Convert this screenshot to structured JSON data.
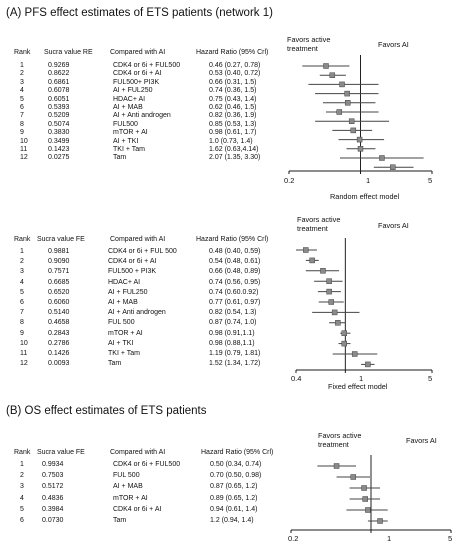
{
  "panels": [
    {
      "id": "A1",
      "title": "(A) PFS effect estimates of ETS patients (network 1)",
      "headers": [
        "Rank",
        "Sucra value RE",
        "Compared with AI",
        "Hazard Ratio (95% Crl)"
      ],
      "favors_left": [
        "Favors active",
        "treatment"
      ],
      "favors_right": "Favors AI",
      "axis_ticks": [
        "0.2",
        "1",
        "5"
      ],
      "model_label": "Random effect model",
      "rows": [
        {
          "rank": "1",
          "sucra": "0.9269",
          "comp": "CDK4 or 6i + FUL500",
          "hr": "0.46 (0.27, 0.78)"
        },
        {
          "rank": "2",
          "sucra": "0.8622",
          "comp": "CDK4 or 6i + AI",
          "hr": "0.53 (0.40, 0.72)"
        },
        {
          "rank": "3",
          "sucra": "0.6861",
          "comp": "FUL500+ PI3K",
          "hr": "0.66 (0.31, 1.5)"
        },
        {
          "rank": "4",
          "sucra": "0.6078",
          "comp": "AI + FUL250",
          "hr": "0.74 (0.36, 1.5)"
        },
        {
          "rank": "5",
          "sucra": "0.6051",
          "comp": "HDAC+ AI",
          "hr": "0.75 (0.43, 1.4)"
        },
        {
          "rank": "6",
          "sucra": "0.5393",
          "comp": "AI + MAB",
          "hr": "0.62 (0.46, 1.5)"
        },
        {
          "rank": "7",
          "sucra": "0.5209",
          "comp": "AI + Anti androgen",
          "hr": "0.82 (0.36, 1.9)"
        },
        {
          "rank": "8",
          "sucra": "0.5074",
          "comp": "FUL500",
          "hr": "0.85 (0.53, 1.3)"
        },
        {
          "rank": "9",
          "sucra": "0.3830",
          "comp": "mTOR + AI",
          "hr": "0.98 (0.61, 1.7)"
        },
        {
          "rank": "10",
          "sucra": "0.3499",
          "comp": "AI + TKI",
          "hr": "1.0 (0.73, 1.4)"
        },
        {
          "rank": "11",
          "sucra": "0.1423",
          "comp": "TKI + Tam",
          "hr": "1.62 (0.63,4.14)"
        },
        {
          "rank": "12",
          "sucra": "0.0275",
          "comp": "Tam",
          "hr": "2.07 (1.35, 3.30)"
        }
      ],
      "forest": [
        {
          "est": 0.46,
          "lo": 0.27,
          "hi": 0.78
        },
        {
          "est": 0.53,
          "lo": 0.4,
          "hi": 0.72
        },
        {
          "est": 0.66,
          "lo": 0.31,
          "hi": 1.5
        },
        {
          "est": 0.74,
          "lo": 0.36,
          "hi": 1.5
        },
        {
          "est": 0.75,
          "lo": 0.43,
          "hi": 1.4
        },
        {
          "est": 0.62,
          "lo": 0.46,
          "hi": 1.5
        },
        {
          "est": 0.82,
          "lo": 0.36,
          "hi": 1.9
        },
        {
          "est": 0.85,
          "lo": 0.53,
          "hi": 1.3
        },
        {
          "est": 0.98,
          "lo": 0.61,
          "hi": 1.7
        },
        {
          "est": 1.0,
          "lo": 0.73,
          "hi": 1.4
        },
        {
          "est": 1.62,
          "lo": 0.63,
          "hi": 4.14
        },
        {
          "est": 2.07,
          "lo": 1.35,
          "hi": 3.3
        }
      ]
    },
    {
      "id": "A2",
      "headers": [
        "Rank",
        "Sucra value FE",
        "Compared with AI",
        "Hazard Ratio (95% Crl)"
      ],
      "favors_left": [
        "Favors active",
        "treatment"
      ],
      "favors_right": "Favors AI",
      "axis_ticks": [
        "0.4",
        "1",
        "5"
      ],
      "model_label": "Fixed effect model",
      "rows": [
        {
          "rank": "1",
          "sucra": "0.9881",
          "comp": "CDK4 or 6i + FUL 500",
          "hr": "0.48 (0.40, 0.59)"
        },
        {
          "rank": "2",
          "sucra": "0.9090",
          "comp": "CDK4 or 6i + AI",
          "hr": "0.54 (0.48, 0.61)"
        },
        {
          "rank": "3",
          "sucra": "0.7571",
          "comp": "FUL500 + PI3K",
          "hr": "0.66 (0.48, 0.89)"
        },
        {
          "rank": "4",
          "sucra": "0.6685",
          "comp": "HDAC+ AI",
          "hr": "0.74 (0.56, 0.95)"
        },
        {
          "rank": "5",
          "sucra": "0.6520",
          "comp": "AI + FUL250",
          "hr": "0.74 (0.60.0.92)"
        },
        {
          "rank": "6",
          "sucra": "0.6060",
          "comp": "AI + MAB",
          "hr": "0.77 (0.61, 0.97)"
        },
        {
          "rank": "7",
          "sucra": "0.5140",
          "comp": "AI + Anti androgen",
          "hr": "0.82 (0.54, 1.3)"
        },
        {
          "rank": "8",
          "sucra": "0.4658",
          "comp": "FUL 500",
          "hr": "0.87 (0.74, 1.0)"
        },
        {
          "rank": "9",
          "sucra": "0.2843",
          "comp": "mTOR + AI",
          "hr": "0.98 (0.91,1.1)"
        },
        {
          "rank": "10",
          "sucra": "0.2786",
          "comp": "AI + TKI",
          "hr": "0.98 (0.88,1.1)"
        },
        {
          "rank": "11",
          "sucra": "0.1426",
          "comp": "TKI + Tam",
          "hr": "1.19 (0.79, 1.81)"
        },
        {
          "rank": "12",
          "sucra": "0.0093",
          "comp": "Tam",
          "hr": "1.52 (1.34, 1.72)"
        }
      ],
      "forest": [
        {
          "est": 0.48,
          "lo": 0.4,
          "hi": 0.59
        },
        {
          "est": 0.54,
          "lo": 0.48,
          "hi": 0.61
        },
        {
          "est": 0.66,
          "lo": 0.48,
          "hi": 0.89
        },
        {
          "est": 0.74,
          "lo": 0.56,
          "hi": 0.95
        },
        {
          "est": 0.74,
          "lo": 0.6,
          "hi": 0.92
        },
        {
          "est": 0.77,
          "lo": 0.61,
          "hi": 0.97
        },
        {
          "est": 0.82,
          "lo": 0.54,
          "hi": 1.3
        },
        {
          "est": 0.87,
          "lo": 0.74,
          "hi": 1.0
        },
        {
          "est": 0.98,
          "lo": 0.91,
          "hi": 1.1
        },
        {
          "est": 0.98,
          "lo": 0.88,
          "hi": 1.1
        },
        {
          "est": 1.19,
          "lo": 0.79,
          "hi": 1.81
        },
        {
          "est": 1.52,
          "lo": 1.34,
          "hi": 1.72
        }
      ]
    },
    {
      "id": "B",
      "title": "(B) OS effect estimates of ETS patients",
      "headers": [
        "Rank",
        "Sucra value FE",
        "Compared with AI",
        "Hazard Ratio (95% Crl)"
      ],
      "favors_left": [
        "Favors active",
        "treatment"
      ],
      "favors_right": "Favors AI",
      "axis_ticks": [
        "0.2",
        "1",
        "5"
      ],
      "rows": [
        {
          "rank": "1",
          "sucra": "0.9934",
          "comp": "CDK4 or 6i + FUL500",
          "hr": "0.50 (0.34, 0.74)"
        },
        {
          "rank": "2",
          "sucra": "0.7503",
          "comp": "FUL 500",
          "hr": "0.70 (0.50, 0.98)"
        },
        {
          "rank": "3",
          "sucra": "0.5172",
          "comp": "AI + MAB",
          "hr": "0.87 (0.65, 1.2)"
        },
        {
          "rank": "4",
          "sucra": "0.4836",
          "comp": "mTOR + AI",
          "hr": "0.89 (0.65, 1.2)"
        },
        {
          "rank": "5",
          "sucra": "0.3984",
          "comp": "CDK4 or 6i + AI",
          "hr": "0.94 (0.61, 1.4)"
        },
        {
          "rank": "6",
          "sucra": "0.0730",
          "comp": "Tam",
          "hr": "1.2 (0.94, 1.4)"
        }
      ],
      "forest": [
        {
          "est": 0.5,
          "lo": 0.34,
          "hi": 0.74
        },
        {
          "est": 0.7,
          "lo": 0.5,
          "hi": 0.98
        },
        {
          "est": 0.87,
          "lo": 0.65,
          "hi": 1.2
        },
        {
          "est": 0.89,
          "lo": 0.65,
          "hi": 1.2
        },
        {
          "est": 0.94,
          "lo": 0.61,
          "hi": 1.4
        },
        {
          "est": 1.2,
          "lo": 0.94,
          "hi": 1.4
        }
      ]
    }
  ],
  "colors": {
    "ink": "#1a1a1a",
    "ci_line": "#444444",
    "point_fill": "#8a8a8a",
    "ref_line": "#222222"
  }
}
